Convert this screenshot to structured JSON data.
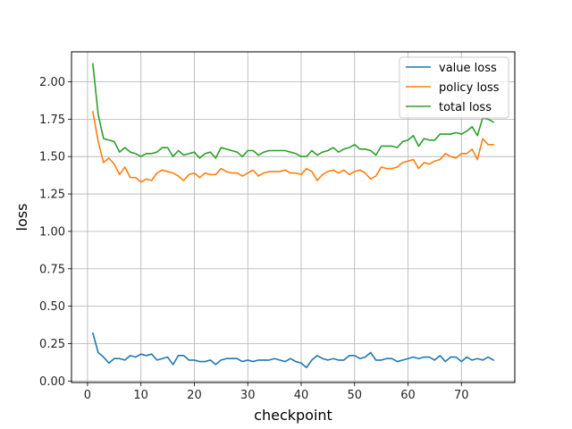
{
  "chart_data": {
    "type": "line",
    "xlabel": "checkpoint",
    "ylabel": "loss",
    "xlim": [
      -3,
      80
    ],
    "ylim": [
      -0.01,
      2.2
    ],
    "xticks": [
      0,
      10,
      20,
      30,
      40,
      50,
      60,
      70
    ],
    "yticks": [
      0.0,
      0.25,
      0.5,
      0.75,
      1.0,
      1.25,
      1.5,
      1.75,
      2.0
    ],
    "ytick_labels": [
      "0.00",
      "0.25",
      "0.50",
      "0.75",
      "1.00",
      "1.25",
      "1.50",
      "1.75",
      "2.00"
    ],
    "grid": true,
    "legend_position": "top-right",
    "x": [
      1,
      2,
      3,
      4,
      5,
      6,
      7,
      8,
      9,
      10,
      11,
      12,
      13,
      14,
      15,
      16,
      17,
      18,
      19,
      20,
      21,
      22,
      23,
      24,
      25,
      26,
      27,
      28,
      29,
      30,
      31,
      32,
      33,
      34,
      35,
      36,
      37,
      38,
      39,
      40,
      41,
      42,
      43,
      44,
      45,
      46,
      47,
      48,
      49,
      50,
      51,
      52,
      53,
      54,
      55,
      56,
      57,
      58,
      59,
      60,
      61,
      62,
      63,
      64,
      65,
      66,
      67,
      68,
      69,
      70,
      71,
      72,
      73,
      74,
      75,
      76
    ],
    "series": [
      {
        "name": "value loss",
        "color": "#1f77b4",
        "values": [
          0.32,
          0.19,
          0.16,
          0.12,
          0.15,
          0.15,
          0.14,
          0.17,
          0.16,
          0.18,
          0.17,
          0.18,
          0.14,
          0.15,
          0.16,
          0.11,
          0.17,
          0.17,
          0.14,
          0.14,
          0.13,
          0.13,
          0.14,
          0.11,
          0.14,
          0.15,
          0.15,
          0.15,
          0.13,
          0.14,
          0.13,
          0.14,
          0.14,
          0.14,
          0.15,
          0.14,
          0.13,
          0.15,
          0.13,
          0.12,
          0.09,
          0.14,
          0.17,
          0.15,
          0.14,
          0.15,
          0.14,
          0.14,
          0.17,
          0.17,
          0.15,
          0.16,
          0.19,
          0.14,
          0.14,
          0.15,
          0.15,
          0.13,
          0.14,
          0.15,
          0.16,
          0.15,
          0.16,
          0.16,
          0.14,
          0.17,
          0.13,
          0.16,
          0.16,
          0.13,
          0.16,
          0.14,
          0.15,
          0.14,
          0.16,
          0.14
        ]
      },
      {
        "name": "policy loss",
        "color": "#ff7f0e",
        "values": [
          1.8,
          1.6,
          1.46,
          1.49,
          1.45,
          1.38,
          1.43,
          1.36,
          1.36,
          1.33,
          1.35,
          1.34,
          1.39,
          1.41,
          1.4,
          1.39,
          1.37,
          1.34,
          1.38,
          1.39,
          1.36,
          1.39,
          1.38,
          1.38,
          1.42,
          1.4,
          1.39,
          1.39,
          1.37,
          1.39,
          1.41,
          1.37,
          1.39,
          1.4,
          1.4,
          1.4,
          1.41,
          1.39,
          1.39,
          1.38,
          1.42,
          1.4,
          1.34,
          1.38,
          1.4,
          1.41,
          1.39,
          1.41,
          1.38,
          1.4,
          1.41,
          1.39,
          1.35,
          1.37,
          1.43,
          1.42,
          1.42,
          1.43,
          1.46,
          1.47,
          1.48,
          1.42,
          1.46,
          1.45,
          1.47,
          1.48,
          1.52,
          1.5,
          1.49,
          1.52,
          1.52,
          1.55,
          1.48,
          1.62,
          1.58,
          1.58
        ]
      },
      {
        "name": "total loss",
        "color": "#2ca02c",
        "values": [
          2.12,
          1.78,
          1.62,
          1.61,
          1.6,
          1.53,
          1.56,
          1.53,
          1.52,
          1.5,
          1.52,
          1.52,
          1.53,
          1.56,
          1.56,
          1.5,
          1.54,
          1.51,
          1.52,
          1.53,
          1.49,
          1.52,
          1.53,
          1.49,
          1.56,
          1.55,
          1.54,
          1.53,
          1.5,
          1.54,
          1.54,
          1.51,
          1.53,
          1.54,
          1.54,
          1.54,
          1.54,
          1.53,
          1.52,
          1.5,
          1.5,
          1.54,
          1.51,
          1.53,
          1.54,
          1.56,
          1.53,
          1.55,
          1.56,
          1.58,
          1.55,
          1.55,
          1.54,
          1.51,
          1.57,
          1.57,
          1.57,
          1.56,
          1.6,
          1.61,
          1.64,
          1.57,
          1.62,
          1.61,
          1.61,
          1.65,
          1.65,
          1.65,
          1.66,
          1.65,
          1.67,
          1.7,
          1.64,
          1.76,
          1.75,
          1.73
        ]
      }
    ]
  }
}
